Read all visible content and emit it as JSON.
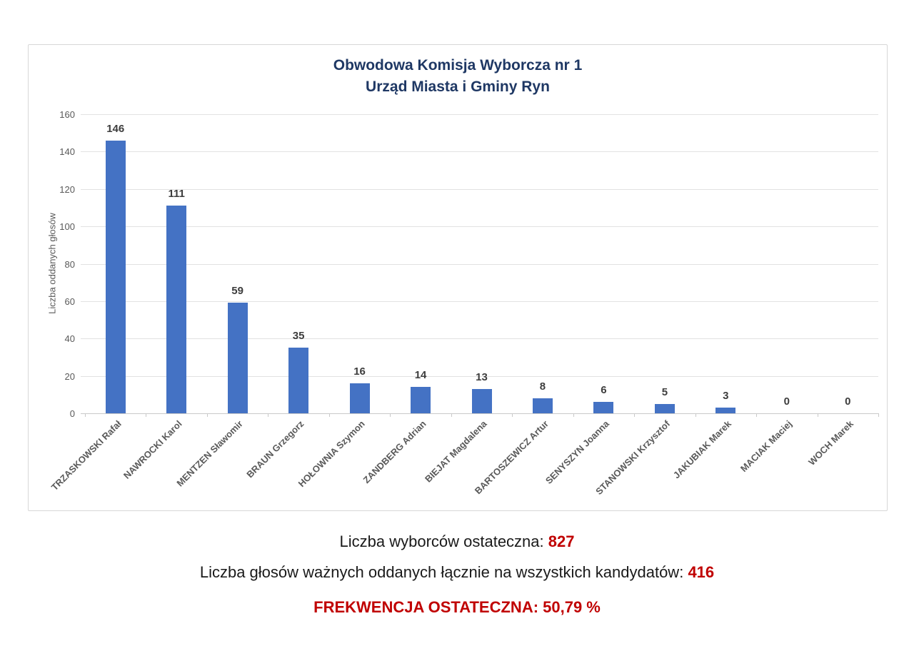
{
  "chart_data": {
    "type": "bar",
    "title_line1": "Obwodowa Komisja Wyborcza nr 1",
    "title_line2": "Urząd Miasta i Gminy Ryn",
    "ylabel": "Liczba oddanych głosów",
    "ylim": [
      0,
      160
    ],
    "yticks": [
      0,
      20,
      40,
      60,
      80,
      100,
      120,
      140,
      160
    ],
    "grid": true,
    "legend": "none",
    "bar_color": "#4472c4",
    "categories": [
      "TRZASKOWSKI Rafał",
      "NAWROCKI Karol",
      "MENTZEN Sławomir",
      "BRAUN Grzegorz",
      "HOŁOWNIA Szymon",
      "ZANDBERG Adrian",
      "BIEJAT Magdalena",
      "BARTOSZEWICZ Artur",
      "SENYSZYN Joanna",
      "STANOWSKI Krzysztof",
      "JAKUBIAK Marek",
      "MACIAK Maciej",
      "WOCH Marek"
    ],
    "values": [
      146,
      111,
      59,
      35,
      16,
      14,
      13,
      8,
      6,
      5,
      3,
      0,
      0
    ]
  },
  "summary": {
    "line1_label": "Liczba wyborców ostateczna: ",
    "line1_value": "827",
    "line2_label": "Liczba głosów ważnych oddanych łącznie na wszystkich kandydatów: ",
    "line2_value": "416",
    "line3": "FREKWENCJA OSTATECZNA: 50,79 %"
  },
  "colors": {
    "title_navy": "#1f3864",
    "bar_blue": "#4472c4",
    "accent_red": "#c00000",
    "axis_gray": "#595959",
    "gridline_gray": "#e2e2e2"
  }
}
